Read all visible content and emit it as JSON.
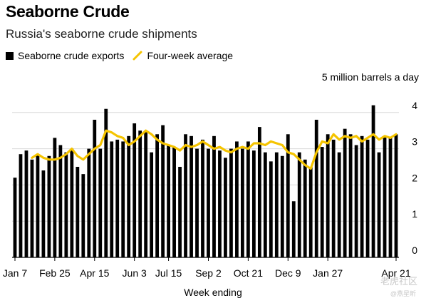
{
  "chart_data": {
    "type": "bar",
    "title": "Seaborne Crude",
    "subtitle": "Russia's seaborne crude shipments",
    "ylabel": "5 million barrels a day",
    "xlabel": "Week ending",
    "ylim": [
      0,
      5
    ],
    "yticks": [
      0,
      1,
      2,
      3,
      4
    ],
    "grid": true,
    "legend_position": "top-left",
    "x_tick_labels": [
      "Jan 7",
      "Feb 25",
      "Apr 15",
      "Jun 3",
      "Jul 15",
      "Sep 2",
      "Oct 21",
      "Dec 9",
      "Jan 27",
      "Apr 21"
    ],
    "x_tick_indices": [
      0,
      7,
      14,
      21,
      27,
      34,
      41,
      48,
      55,
      67
    ],
    "series": [
      {
        "name": "Seaborne crude exports",
        "kind": "bar",
        "color": "#000000",
        "values": [
          2.2,
          2.85,
          2.95,
          2.7,
          2.85,
          2.4,
          2.8,
          3.3,
          3.1,
          2.9,
          3.0,
          2.5,
          2.3,
          3.0,
          3.8,
          3.0,
          4.1,
          3.2,
          3.25,
          3.2,
          3.35,
          3.7,
          3.5,
          3.5,
          2.9,
          3.4,
          3.65,
          3.1,
          3.05,
          2.5,
          3.4,
          3.35,
          3.0,
          3.25,
          3.0,
          3.35,
          2.95,
          2.75,
          3.0,
          3.2,
          3.0,
          3.2,
          2.95,
          3.6,
          2.9,
          2.65,
          2.9,
          2.8,
          3.4,
          1.55,
          2.9,
          2.7,
          2.5,
          3.8,
          3.05,
          3.4,
          3.25,
          2.9,
          3.55,
          3.4,
          3.1,
          3.35,
          3.25,
          4.2,
          2.9,
          3.35,
          3.3,
          3.4
        ]
      },
      {
        "name": "Four-week average",
        "kind": "line",
        "color": "#f5c400",
        "values": [
          null,
          null,
          null,
          2.75,
          2.85,
          2.75,
          2.7,
          2.7,
          2.75,
          2.85,
          3.0,
          2.8,
          2.7,
          2.85,
          3.0,
          3.1,
          3.5,
          3.45,
          3.35,
          3.3,
          3.1,
          3.2,
          3.35,
          3.5,
          3.4,
          3.25,
          3.15,
          3.1,
          3.05,
          2.95,
          3.1,
          3.05,
          3.1,
          3.2,
          3.1,
          3.0,
          3.05,
          2.95,
          2.9,
          3.0,
          3.05,
          3.0,
          3.15,
          3.15,
          3.1,
          3.2,
          3.15,
          3.1,
          2.9,
          2.85,
          2.7,
          2.55,
          2.45,
          2.9,
          3.2,
          3.15,
          3.4,
          3.25,
          3.35,
          3.3,
          3.35,
          3.2,
          3.3,
          3.4,
          3.25,
          3.35,
          3.3,
          3.4
        ]
      }
    ]
  },
  "watermark": "老虎社区",
  "watermark_sub": "@燕星昕"
}
